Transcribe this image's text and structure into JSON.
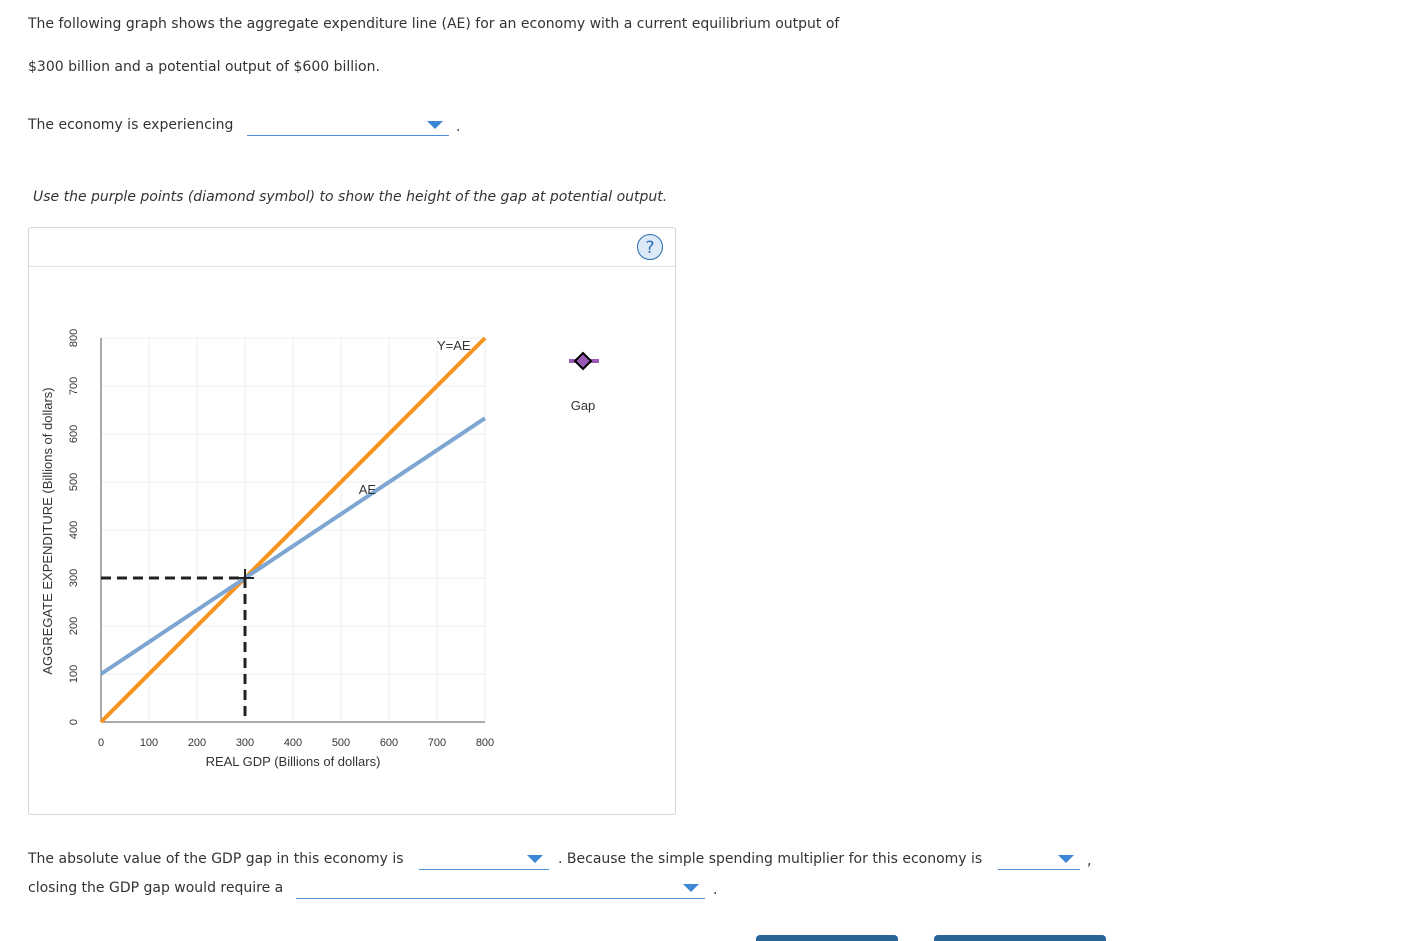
{
  "intro": {
    "line1": "The following graph shows the aggregate expenditure line (AE) for an economy with a current equilibrium output of",
    "line2": "$300 billion and a potential output of $600 billion."
  },
  "q1": {
    "prefix": "The economy is experiencing",
    "suffix": "."
  },
  "instruction": "Use the purple points (diamond symbol) to show the height of the gap at potential output.",
  "help_label": "?",
  "chart_data": {
    "type": "line",
    "xlabel": "REAL GDP (Billions of dollars)",
    "ylabel": "AGGREGATE EXPENDITURE (Billions of dollars)",
    "xlim": [
      0,
      800
    ],
    "ylim": [
      0,
      800
    ],
    "x_ticks": [
      0,
      100,
      200,
      300,
      400,
      500,
      600,
      700,
      800
    ],
    "y_ticks": [
      0,
      100,
      200,
      300,
      400,
      500,
      600,
      700,
      800
    ],
    "grid": true,
    "series": [
      {
        "name": "Y=AE",
        "color": "#f7941d",
        "points": [
          [
            0,
            0
          ],
          [
            800,
            800
          ]
        ]
      },
      {
        "name": "AE",
        "color": "#7ea6d3",
        "points": [
          [
            0,
            100
          ],
          [
            800,
            633
          ]
        ]
      }
    ],
    "equilibrium": {
      "x": 300,
      "y": 300
    },
    "palette_tool": {
      "label": "Gap",
      "color": "#9b59b6"
    }
  },
  "q2": {
    "prefix": "The absolute value of the GDP gap in this economy is",
    "middle": ". Because the simple spending multiplier for this economy is",
    "comma": ","
  },
  "q3": {
    "prefix": "closing the GDP gap would require a",
    "suffix": "."
  }
}
